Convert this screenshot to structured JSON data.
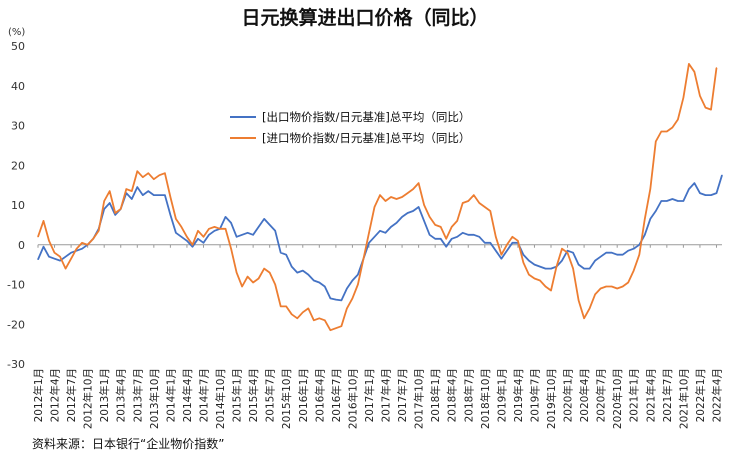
{
  "chart_data": {
    "type": "line",
    "title": "日元换算进出口价格（同比）",
    "unit_label": "(%)",
    "source": "资料来源：日本银行“企业物价指数”",
    "ylim": [
      -30,
      50
    ],
    "y_ticks": [
      -30,
      -20,
      -10,
      0,
      10,
      20,
      30,
      40,
      50
    ],
    "grid": false,
    "legend_position": "center",
    "x_tick_labels": [
      "2012年1月",
      "2012年4月",
      "2012年7月",
      "2012年10月",
      "2013年1月",
      "2013年4月",
      "2013年7月",
      "2013年10月",
      "2014年1月",
      "2014年4月",
      "2014年7月",
      "2014年10月",
      "2015年1月",
      "2015年4月",
      "2015年7月",
      "2015年10月",
      "2016年1月",
      "2016年4月",
      "2016年7月",
      "2016年10月",
      "2017年1月",
      "2017年4月",
      "2017年7月",
      "2017年10月",
      "2018年1月",
      "2018年4月",
      "2018年7月",
      "2018年10月",
      "2019年1月",
      "2019年4月",
      "2019年7月",
      "2019年10月",
      "2020年1月",
      "2020年4月",
      "2020年7月",
      "2020年10月",
      "2021年1月",
      "2021年4月",
      "2021年7月",
      "2021年10月",
      "2022年1月",
      "2022年4月"
    ],
    "series": [
      {
        "name": "[出口物价指数/日元基准]总平均（同比）",
        "color": "#4472C4",
        "values": [
          -3.7,
          -0.5,
          -3.0,
          -3.5,
          -4.0,
          -3.0,
          -2.0,
          -1.5,
          -1.0,
          0.0,
          1.5,
          4.0,
          9.0,
          10.5,
          7.5,
          9.0,
          13.0,
          11.5,
          14.5,
          12.5,
          13.5,
          12.5,
          12.5,
          12.5,
          7.5,
          3.0,
          2.0,
          1.0,
          -0.5,
          1.5,
          0.5,
          2.5,
          3.5,
          4.0,
          7.0,
          5.5,
          2.0,
          2.5,
          3.0,
          2.5,
          4.5,
          6.5,
          5.0,
          3.5,
          -2.0,
          -2.5,
          -5.5,
          -7.0,
          -6.5,
          -7.5,
          -9.0,
          -9.5,
          -10.5,
          -13.5,
          -13.8,
          -14.0,
          -11.0,
          -9.0,
          -7.5,
          -3.5,
          0.5,
          2.0,
          3.5,
          3.0,
          4.5,
          5.5,
          7.0,
          8.0,
          8.5,
          9.5,
          6.0,
          2.5,
          1.5,
          1.5,
          -0.5,
          1.5,
          2.0,
          3.0,
          2.5,
          2.5,
          2.0,
          0.5,
          0.5,
          -1.5,
          -3.5,
          -1.5,
          0.5,
          0.5,
          -2.5,
          -4.0,
          -5.0,
          -5.5,
          -6.0,
          -6.0,
          -5.5,
          -4.0,
          -1.5,
          -2.0,
          -5.0,
          -6.0,
          -6.0,
          -4.0,
          -3.0,
          -2.0,
          -2.0,
          -2.5,
          -2.5,
          -1.5,
          -1.0,
          0.0,
          2.5,
          6.5,
          8.5,
          11.0,
          11.0,
          11.5,
          11.0,
          11.0,
          14.0,
          15.5,
          13.0,
          12.5,
          12.5,
          13.0,
          17.5
        ]
      },
      {
        "name": "[进口物价指数/日元基准]总平均（同比）",
        "color": "#ED7D31",
        "values": [
          2.0,
          6.0,
          1.0,
          -2.0,
          -3.0,
          -6.0,
          -3.5,
          -1.0,
          0.5,
          0.0,
          1.5,
          3.5,
          11.0,
          13.5,
          8.0,
          9.0,
          14.0,
          13.5,
          18.5,
          17.0,
          18.0,
          16.5,
          17.5,
          18.0,
          12.0,
          6.5,
          4.5,
          2.0,
          0.0,
          3.5,
          2.0,
          4.0,
          4.5,
          4.0,
          4.0,
          -1.0,
          -7.0,
          -10.5,
          -8.0,
          -9.5,
          -8.5,
          -6.0,
          -7.0,
          -10.0,
          -15.5,
          -15.5,
          -17.5,
          -18.5,
          -17.0,
          -16.0,
          -19.0,
          -18.5,
          -19.0,
          -21.5,
          -21.0,
          -20.5,
          -16.0,
          -13.5,
          -10.0,
          -3.5,
          3.0,
          9.5,
          12.5,
          11.0,
          12.0,
          11.5,
          12.0,
          13.0,
          14.0,
          15.5,
          10.0,
          7.0,
          5.0,
          4.5,
          1.5,
          4.5,
          6.0,
          10.5,
          11.0,
          12.5,
          10.5,
          9.5,
          8.5,
          2.0,
          -2.5,
          0.0,
          2.0,
          1.0,
          -4.5,
          -7.5,
          -8.5,
          -9.0,
          -10.5,
          -11.5,
          -5.5,
          -1.0,
          -2.0,
          -6.0,
          -14.0,
          -18.5,
          -16.0,
          -12.5,
          -11.0,
          -10.5,
          -10.5,
          -11.0,
          -10.5,
          -9.5,
          -6.5,
          -2.5,
          6.5,
          14.0,
          26.0,
          28.5,
          28.5,
          29.5,
          31.5,
          37.0,
          45.5,
          43.5,
          37.5,
          34.5,
          34.0,
          44.5
        ]
      }
    ]
  }
}
